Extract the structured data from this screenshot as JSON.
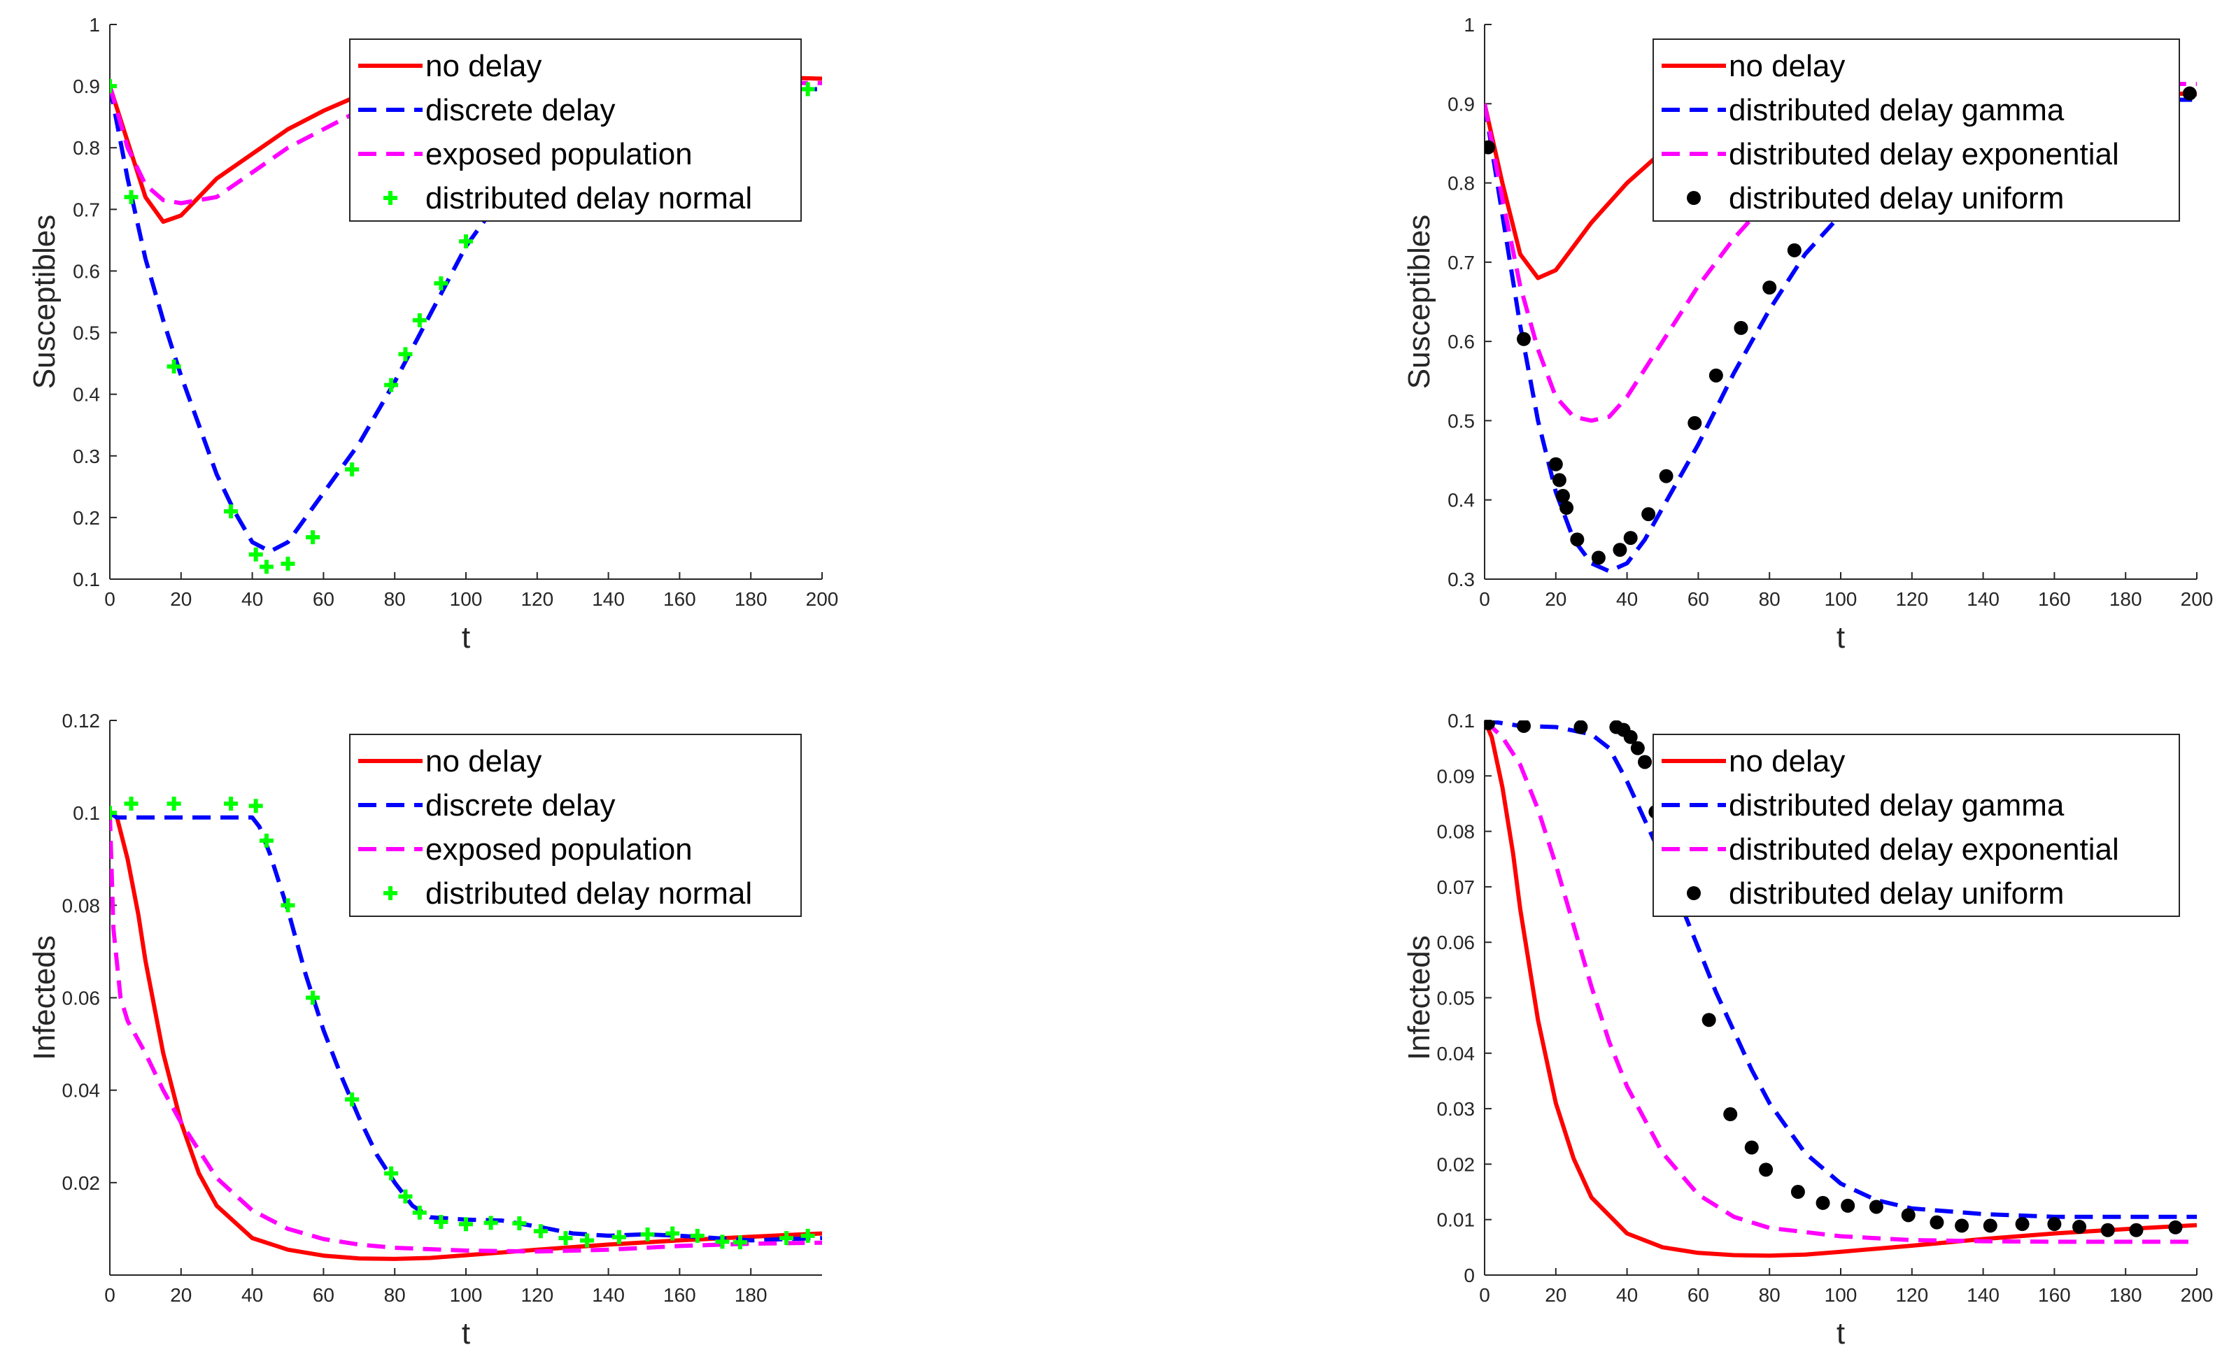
{
  "chart_data": [
    {
      "type": "line",
      "title": "",
      "xlabel": "t",
      "ylabel": "Susceptibles",
      "xlim": [
        0,
        200
      ],
      "ylim": [
        0.1,
        1
      ],
      "xticks": [
        "0",
        "20",
        "40",
        "60",
        "80",
        "100",
        "120",
        "140",
        "160",
        "180",
        "200"
      ],
      "xtick_values": [
        0,
        20,
        40,
        60,
        80,
        100,
        120,
        140,
        160,
        180,
        200
      ],
      "yticks": [
        "0.1",
        "0.2",
        "0.3",
        "0.4",
        "0.5",
        "0.6",
        "0.7",
        "0.8",
        "0.9",
        "1"
      ],
      "ytick_values": [
        0.1,
        0.2,
        0.3,
        0.4,
        0.5,
        0.6,
        0.7,
        0.8,
        0.9,
        1
      ],
      "legend_position": "top-right",
      "series": [
        {
          "name": "no delay",
          "style": "solid",
          "color": "#ff0000",
          "x": [
            0,
            5,
            10,
            15,
            20,
            25,
            30,
            40,
            50,
            60,
            70,
            80,
            90,
            100,
            120,
            140,
            160,
            180,
            200
          ],
          "y": [
            0.9,
            0.81,
            0.72,
            0.68,
            0.69,
            0.72,
            0.75,
            0.79,
            0.83,
            0.86,
            0.885,
            0.9,
            0.91,
            0.915,
            0.92,
            0.92,
            0.918,
            0.915,
            0.912
          ]
        },
        {
          "name": "discrete delay",
          "style": "dashed",
          "color": "#0000ff",
          "x": [
            0,
            5,
            10,
            15,
            20,
            25,
            30,
            35,
            40,
            45,
            50,
            55,
            60,
            70,
            80,
            90,
            100,
            110,
            120,
            140,
            160,
            180,
            200
          ],
          "y": [
            0.9,
            0.75,
            0.62,
            0.52,
            0.43,
            0.35,
            0.27,
            0.21,
            0.16,
            0.145,
            0.16,
            0.2,
            0.24,
            0.32,
            0.42,
            0.53,
            0.64,
            0.72,
            0.79,
            0.86,
            0.89,
            0.895,
            0.895
          ]
        },
        {
          "name": "exposed population",
          "style": "dashed",
          "color": "#ff00ff",
          "x": [
            0,
            5,
            10,
            15,
            20,
            30,
            40,
            50,
            60,
            70,
            80,
            100,
            120,
            140,
            160,
            180,
            200
          ],
          "y": [
            0.9,
            0.8,
            0.74,
            0.715,
            0.71,
            0.72,
            0.76,
            0.8,
            0.83,
            0.86,
            0.88,
            0.9,
            0.905,
            0.905,
            0.905,
            0.905,
            0.905
          ]
        },
        {
          "name": "distributed delay normal",
          "style": "markers-plus",
          "color": "#00ff00",
          "x": [
            0,
            6,
            18,
            34,
            41,
            44,
            50,
            57,
            68,
            79,
            83,
            87,
            93,
            100,
            196
          ],
          "y": [
            0.9,
            0.72,
            0.445,
            0.21,
            0.14,
            0.12,
            0.125,
            0.168,
            0.278,
            0.415,
            0.465,
            0.52,
            0.58,
            0.648,
            0.895
          ]
        }
      ]
    },
    {
      "type": "line",
      "title": "",
      "xlabel": "t",
      "ylabel": "Susceptibles",
      "xlim": [
        0,
        200
      ],
      "ylim": [
        0.3,
        1
      ],
      "xticks": [
        "0",
        "20",
        "40",
        "60",
        "80",
        "100",
        "120",
        "140",
        "160",
        "180",
        "200"
      ],
      "xtick_values": [
        0,
        20,
        40,
        60,
        80,
        100,
        120,
        140,
        160,
        180,
        200
      ],
      "yticks": [
        "0.3",
        "0.4",
        "0.5",
        "0.6",
        "0.7",
        "0.8",
        "0.9",
        "1"
      ],
      "ytick_values": [
        0.3,
        0.4,
        0.5,
        0.6,
        0.7,
        0.8,
        0.9,
        1
      ],
      "legend_position": "top-right",
      "series": [
        {
          "name": "no delay",
          "style": "solid",
          "color": "#ff0000",
          "x": [
            0,
            5,
            10,
            15,
            20,
            25,
            30,
            40,
            50,
            60,
            70,
            80,
            90,
            100,
            120,
            140,
            160,
            180,
            200
          ],
          "y": [
            0.9,
            0.8,
            0.71,
            0.68,
            0.69,
            0.72,
            0.75,
            0.8,
            0.84,
            0.87,
            0.89,
            0.905,
            0.91,
            0.915,
            0.92,
            0.92,
            0.918,
            0.915,
            0.912
          ]
        },
        {
          "name": "distributed delay gamma",
          "style": "dashed",
          "color": "#0000ff",
          "x": [
            0,
            5,
            10,
            15,
            20,
            25,
            30,
            35,
            40,
            45,
            50,
            60,
            70,
            80,
            90,
            100,
            110,
            120,
            140,
            160,
            180,
            200
          ],
          "y": [
            0.9,
            0.76,
            0.62,
            0.5,
            0.41,
            0.35,
            0.32,
            0.31,
            0.32,
            0.35,
            0.39,
            0.47,
            0.56,
            0.64,
            0.71,
            0.76,
            0.8,
            0.83,
            0.87,
            0.895,
            0.905,
            0.905
          ]
        },
        {
          "name": "distributed delay exponential",
          "style": "dashed",
          "color": "#ff00ff",
          "x": [
            0,
            5,
            10,
            15,
            20,
            25,
            30,
            35,
            40,
            50,
            60,
            70,
            80,
            90,
            100,
            120,
            140,
            160,
            180,
            200
          ],
          "y": [
            0.9,
            0.78,
            0.67,
            0.59,
            0.53,
            0.505,
            0.5,
            0.505,
            0.53,
            0.6,
            0.67,
            0.73,
            0.78,
            0.82,
            0.85,
            0.89,
            0.91,
            0.92,
            0.925,
            0.925
          ]
        },
        {
          "name": "distributed delay uniform",
          "style": "markers-dot",
          "color": "#000000",
          "x": [
            1,
            11,
            20,
            21,
            22,
            23,
            26,
            32,
            38,
            41,
            46,
            51,
            59,
            65,
            72,
            80,
            87,
            198
          ],
          "y": [
            0.845,
            0.603,
            0.445,
            0.425,
            0.405,
            0.39,
            0.35,
            0.327,
            0.337,
            0.352,
            0.382,
            0.43,
            0.497,
            0.557,
            0.617,
            0.668,
            0.715,
            0.913
          ]
        }
      ]
    },
    {
      "type": "line",
      "title": "",
      "xlabel": "t",
      "ylabel": "Infecteds",
      "xlim": [
        0,
        200
      ],
      "ylim": [
        0,
        0.12
      ],
      "xticks": [
        "0",
        "20",
        "40",
        "60",
        "80",
        "100",
        "120",
        "140",
        "160",
        "180"
      ],
      "xtick_values": [
        0,
        20,
        40,
        60,
        80,
        100,
        120,
        140,
        160,
        180
      ],
      "yticks": [
        "0.02",
        "0.04",
        "0.06",
        "0.08",
        "0.1",
        "0.12"
      ],
      "ytick_values": [
        0.02,
        0.04,
        0.06,
        0.08,
        0.1,
        0.12
      ],
      "legend_position": "top-right",
      "series": [
        {
          "name": "no delay",
          "style": "solid",
          "color": "#ff0000",
          "x": [
            0,
            2,
            5,
            8,
            10,
            15,
            20,
            25,
            30,
            40,
            50,
            60,
            70,
            80,
            90,
            100,
            120,
            140,
            160,
            180,
            200
          ],
          "y": [
            0.1,
            0.099,
            0.09,
            0.078,
            0.068,
            0.048,
            0.033,
            0.022,
            0.015,
            0.008,
            0.0055,
            0.0042,
            0.0036,
            0.0035,
            0.0037,
            0.0043,
            0.0055,
            0.0066,
            0.0075,
            0.0083,
            0.009
          ]
        },
        {
          "name": "discrete delay",
          "style": "dashed",
          "color": "#0000ff",
          "x": [
            0,
            2,
            10,
            20,
            30,
            40,
            42,
            45,
            50,
            55,
            60,
            65,
            70,
            75,
            80,
            85,
            90,
            100,
            110,
            120,
            130,
            140,
            150,
            160,
            170,
            180,
            190,
            200
          ],
          "y": [
            0.1,
            0.099,
            0.099,
            0.099,
            0.099,
            0.099,
            0.097,
            0.091,
            0.079,
            0.065,
            0.053,
            0.043,
            0.034,
            0.026,
            0.02,
            0.015,
            0.0125,
            0.012,
            0.0118,
            0.0105,
            0.009,
            0.0085,
            0.0088,
            0.0085,
            0.008,
            0.0075,
            0.0078,
            0.008
          ]
        },
        {
          "name": "exposed population",
          "style": "dashed",
          "color": "#ff00ff",
          "x": [
            0,
            1,
            3,
            5,
            10,
            15,
            20,
            30,
            40,
            50,
            60,
            70,
            80,
            100,
            120,
            140,
            160,
            180,
            200
          ],
          "y": [
            0.1,
            0.075,
            0.06,
            0.055,
            0.048,
            0.04,
            0.033,
            0.021,
            0.014,
            0.01,
            0.0078,
            0.0066,
            0.0059,
            0.0053,
            0.0051,
            0.0055,
            0.0063,
            0.0068,
            0.007
          ]
        },
        {
          "name": "distributed delay normal",
          "style": "markers-plus",
          "color": "#00ff00",
          "x": [
            0,
            6,
            18,
            34,
            41,
            44,
            50,
            57,
            68,
            79,
            83,
            87,
            93,
            100,
            107,
            115,
            121,
            128,
            134,
            143,
            151,
            158,
            165,
            172,
            177,
            190,
            196
          ],
          "y": [
            0.1,
            0.102,
            0.102,
            0.102,
            0.1015,
            0.094,
            0.08,
            0.06,
            0.038,
            0.022,
            0.017,
            0.0135,
            0.0115,
            0.011,
            0.0113,
            0.0112,
            0.0095,
            0.008,
            0.0075,
            0.0082,
            0.0088,
            0.009,
            0.0085,
            0.0072,
            0.0071,
            0.008,
            0.0085
          ]
        }
      ]
    },
    {
      "type": "line",
      "title": "",
      "xlabel": "t",
      "ylabel": "Infecteds",
      "xlim": [
        0,
        200
      ],
      "ylim": [
        0,
        0.1
      ],
      "xticks": [
        "0",
        "20",
        "40",
        "60",
        "80",
        "100",
        "120",
        "140",
        "160",
        "180",
        "200"
      ],
      "xtick_values": [
        0,
        20,
        40,
        60,
        80,
        100,
        120,
        140,
        160,
        180,
        200
      ],
      "yticks": [
        "0",
        "0.01",
        "0.02",
        "0.03",
        "0.04",
        "0.05",
        "0.06",
        "0.07",
        "0.08",
        "0.09",
        "0.1"
      ],
      "ytick_values": [
        0,
        0.01,
        0.02,
        0.03,
        0.04,
        0.05,
        0.06,
        0.07,
        0.08,
        0.09,
        0.1
      ],
      "legend_position": "top-right",
      "series": [
        {
          "name": "no delay",
          "style": "solid",
          "color": "#ff0000",
          "x": [
            0,
            2,
            5,
            8,
            10,
            15,
            20,
            25,
            30,
            40,
            50,
            60,
            70,
            80,
            90,
            100,
            120,
            140,
            160,
            180,
            200
          ],
          "y": [
            0.1,
            0.097,
            0.088,
            0.076,
            0.066,
            0.046,
            0.031,
            0.021,
            0.014,
            0.0075,
            0.005,
            0.004,
            0.0036,
            0.0035,
            0.0037,
            0.0042,
            0.0053,
            0.0065,
            0.0075,
            0.0083,
            0.009
          ]
        },
        {
          "name": "distributed delay gamma",
          "style": "dashed",
          "color": "#0000ff",
          "x": [
            0,
            10,
            20,
            30,
            35,
            40,
            45,
            50,
            55,
            60,
            65,
            70,
            75,
            80,
            90,
            100,
            110,
            120,
            140,
            160,
            180,
            200
          ],
          "y": [
            0.1,
            0.099,
            0.0988,
            0.0975,
            0.095,
            0.089,
            0.082,
            0.075,
            0.067,
            0.059,
            0.051,
            0.044,
            0.037,
            0.031,
            0.022,
            0.0165,
            0.0135,
            0.012,
            0.011,
            0.0105,
            0.0105,
            0.0105
          ]
        },
        {
          "name": "distributed delay exponential",
          "style": "dashed",
          "color": "#ff00ff",
          "x": [
            0,
            5,
            10,
            15,
            20,
            25,
            30,
            35,
            40,
            50,
            60,
            70,
            80,
            100,
            120,
            140,
            160,
            180,
            200
          ],
          "y": [
            0.1,
            0.097,
            0.092,
            0.084,
            0.074,
            0.063,
            0.052,
            0.042,
            0.034,
            0.022,
            0.0145,
            0.0105,
            0.0085,
            0.007,
            0.0063,
            0.0061,
            0.006,
            0.006,
            0.006
          ]
        },
        {
          "name": "distributed delay uniform",
          "style": "markers-dot",
          "color": "#000000",
          "x": [
            1,
            11,
            27,
            37,
            39,
            41,
            43,
            45,
            48,
            55,
            63,
            69,
            75,
            79,
            88,
            95,
            102,
            110,
            119,
            127,
            134,
            142,
            151,
            160,
            167,
            175,
            183,
            194
          ],
          "y": [
            0.0995,
            0.099,
            0.0988,
            0.0988,
            0.0983,
            0.097,
            0.095,
            0.0925,
            0.0835,
            0.0705,
            0.046,
            0.029,
            0.023,
            0.019,
            0.015,
            0.013,
            0.0125,
            0.0123,
            0.0108,
            0.0095,
            0.0089,
            0.0089,
            0.0092,
            0.0092,
            0.0087,
            0.0081,
            0.0081,
            0.0086
          ]
        }
      ]
    }
  ]
}
